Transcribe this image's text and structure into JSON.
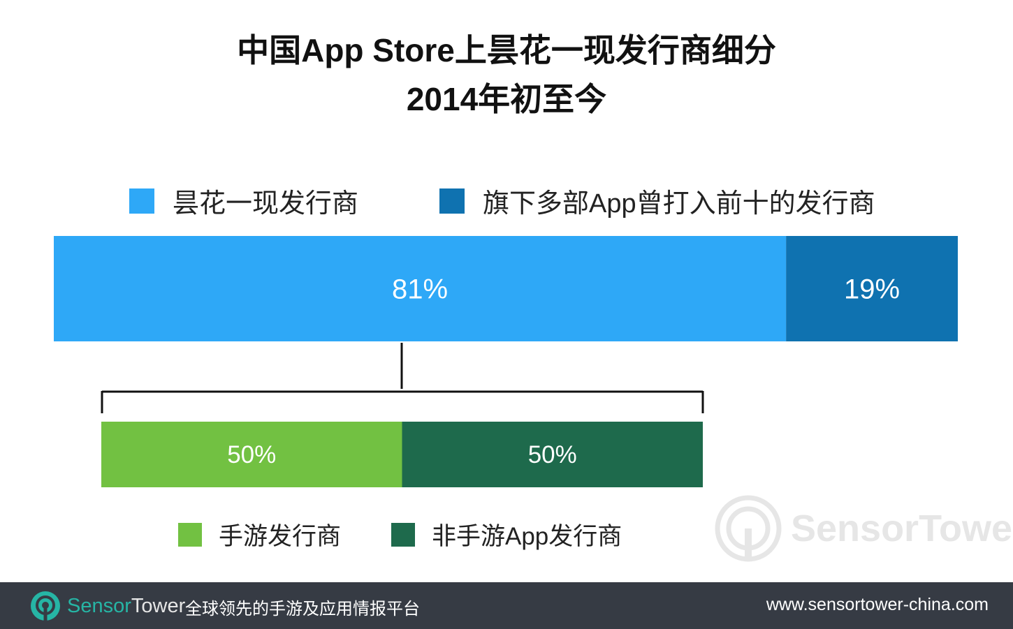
{
  "title": {
    "line1": "中国App Store上昙花一现发行商细分",
    "line2": "2014年初至今"
  },
  "legend_top": [
    {
      "label": "昙花一现发行商",
      "color": "#2ea8f7"
    },
    {
      "label": "旗下多部App曾打入前十的发行商",
      "color": "#0f72b0"
    }
  ],
  "legend_bottom": [
    {
      "label": "手游发行商",
      "color": "#72c142"
    },
    {
      "label": "非手游App发行商",
      "color": "#1e6a4c"
    }
  ],
  "chart_data": [
    {
      "type": "bar",
      "orientation": "horizontal-stacked",
      "series": [
        {
          "name": "昙花一现发行商",
          "value": 81,
          "label": "81%",
          "color": "#2ea8f7"
        },
        {
          "name": "旗下多部App曾打入前十的发行商",
          "value": 19,
          "label": "19%",
          "color": "#0f72b0"
        }
      ],
      "total": 100
    },
    {
      "type": "bar",
      "orientation": "horizontal-stacked",
      "breakdown_of": "昙花一现发行商",
      "series": [
        {
          "name": "手游发行商",
          "value": 50,
          "label": "50%",
          "color": "#72c142"
        },
        {
          "name": "非手游App发行商",
          "value": 50,
          "label": "50%",
          "color": "#1e6a4c"
        }
      ],
      "total": 100
    }
  ],
  "watermark": {
    "brand": "SensorTower"
  },
  "footer": {
    "brand_part1": "Sensor",
    "brand_part2": "Tower",
    "tagline": "全球领先的手游及应用情报平台",
    "url": "www.sensortower-china.com"
  }
}
